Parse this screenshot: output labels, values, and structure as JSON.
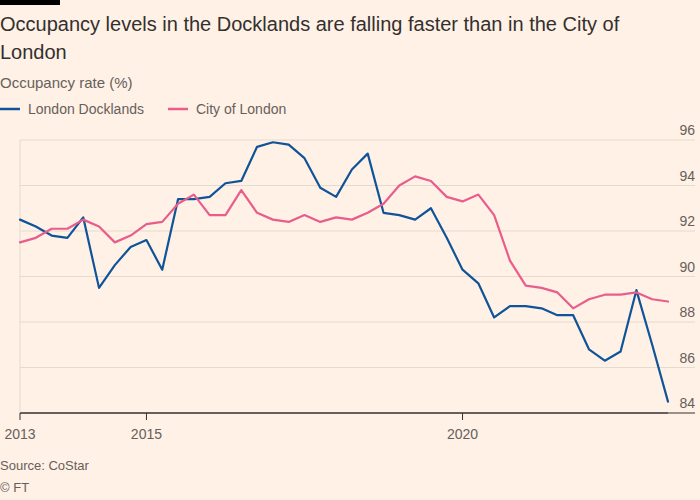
{
  "chart_data": {
    "type": "line",
    "title": "Occupancy levels in the Docklands are falling faster than in the City of London",
    "subtitle": "Occupancy rate (%)",
    "source": "Source: CoStar",
    "copyright": "© FT",
    "x": [
      2013,
      2013.25,
      2013.5,
      2013.75,
      2014,
      2014.25,
      2014.5,
      2014.75,
      2015,
      2015.25,
      2015.5,
      2015.75,
      2016,
      2016.25,
      2016.5,
      2016.75,
      2017,
      2017.25,
      2017.5,
      2017.75,
      2018,
      2018.25,
      2018.5,
      2018.75,
      2019,
      2019.25,
      2019.5,
      2019.75,
      2020,
      2020.25,
      2020.5,
      2020.75,
      2021,
      2021.25,
      2021.5,
      2021.75,
      2022,
      2022.25,
      2022.5,
      2022.75,
      2023,
      2023.25
    ],
    "xlim": [
      2013,
      2023.25
    ],
    "xticks": [
      2013,
      2015,
      2020
    ],
    "ylim": [
      84,
      96
    ],
    "yticks": [
      84,
      86,
      88,
      90,
      92,
      94,
      96
    ],
    "grid": true,
    "legend": "top",
    "series": [
      {
        "name": "London Docklands",
        "color": "#0f5499",
        "values": [
          92.5,
          92.2,
          91.8,
          91.7,
          92.6,
          89.5,
          90.5,
          91.3,
          91.6,
          90.3,
          93.4,
          93.4,
          93.5,
          94.1,
          94.2,
          95.7,
          95.9,
          95.8,
          95.2,
          93.9,
          93.5,
          94.7,
          95.4,
          92.8,
          92.7,
          92.5,
          93.0,
          91.7,
          90.3,
          89.7,
          88.2,
          88.7,
          88.7,
          88.6,
          88.3,
          88.3,
          86.8,
          86.3,
          86.7,
          89.4,
          87.0,
          84.5
        ]
      },
      {
        "name": "City of London",
        "color": "#e95d8c",
        "values": [
          91.5,
          91.7,
          92.1,
          92.1,
          92.5,
          92.2,
          91.5,
          91.8,
          92.3,
          92.4,
          93.2,
          93.6,
          92.7,
          92.7,
          93.8,
          92.8,
          92.5,
          92.4,
          92.7,
          92.4,
          92.6,
          92.5,
          92.8,
          93.2,
          94.0,
          94.4,
          94.2,
          93.5,
          93.3,
          93.6,
          92.7,
          90.7,
          89.6,
          89.5,
          89.3,
          88.6,
          89.0,
          89.2,
          89.2,
          89.3,
          89.0,
          88.9
        ]
      }
    ]
  }
}
